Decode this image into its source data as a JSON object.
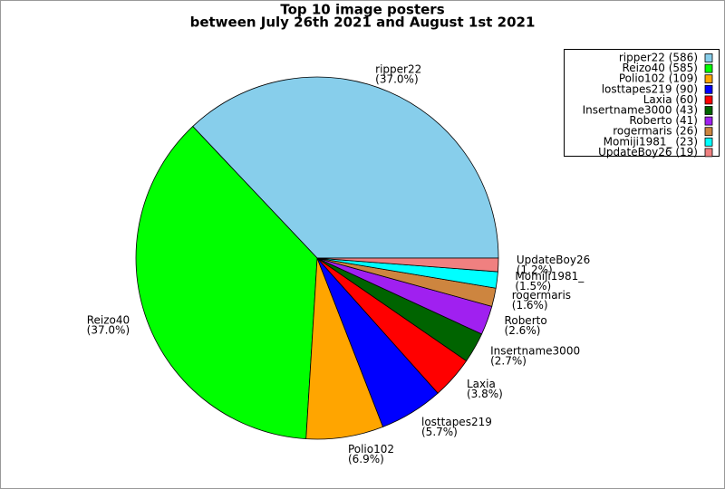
{
  "chart_data": {
    "type": "pie",
    "title": "Top 10 image posters",
    "subtitle": "between July 26th 2021 and August 1st 2021",
    "categories": [
      "ripper22",
      "Reizo40",
      "Polio102",
      "losttapes219",
      "Laxia",
      "Insertname3000",
      "Roberto",
      "rogermaris",
      "Momiji1981_",
      "UpdateBoy26"
    ],
    "values": [
      586,
      585,
      109,
      90,
      60,
      43,
      41,
      26,
      23,
      19
    ],
    "value_labels": [
      "(37.0%)",
      "(37.0%)",
      "(6.9%)",
      "(5.7%)",
      "(3.8%)",
      "(2.7%)",
      "(2.6%)",
      "(1.6%)",
      "(1.5%)",
      "(1.2%)"
    ],
    "legend_labels": [
      "ripper22 (586)",
      "Reizo40 (585)",
      "Polio102 (109)",
      "losttapes219 (90)",
      "Laxia (60)",
      "Insertname3000 (43)",
      "Roberto (41)",
      "rogermaris (26)",
      "Momiji1981_ (23)",
      "UpdateBoy26 (19)"
    ],
    "colors": [
      "#87ceeb",
      "#00ff00",
      "#ffa500",
      "#0000ff",
      "#ff0000",
      "#006400",
      "#a020f0",
      "#cd853f",
      "#00ffff",
      "#f08080"
    ],
    "legend": "upper right"
  }
}
